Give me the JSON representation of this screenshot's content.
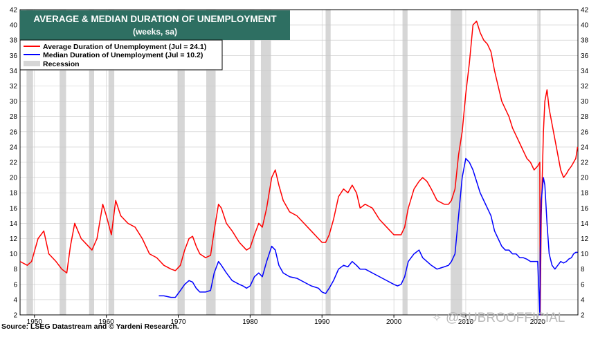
{
  "title": "AVERAGE & MEDIAN DURATION OF UNEMPLOYMENT",
  "subtitle": "(weeks, sa)",
  "source": "Source: LSEG Datastream and © Yardeni Research.",
  "watermark": "@SUBROOFFICIAL",
  "colors": {
    "title_bg": "#2e6f62",
    "average": "#ff0000",
    "median": "#0000ff",
    "recession": "#d6d6d6",
    "grid": "#c8c8c8"
  },
  "chart_data": {
    "type": "line",
    "title": "AVERAGE & MEDIAN DURATION OF UNEMPLOYMENT",
    "subtitle": "(weeks, sa)",
    "xlim": [
      1948,
      2025.6
    ],
    "ylim": [
      2,
      42
    ],
    "yticks": [
      2,
      4,
      6,
      8,
      10,
      12,
      14,
      16,
      18,
      20,
      22,
      24,
      26,
      28,
      30,
      32,
      34,
      36,
      38,
      40,
      42
    ],
    "xticks": [
      1950,
      1960,
      1970,
      1980,
      1990,
      2000,
      2010,
      2020
    ],
    "xtick_labels": [
      "1950",
      "1960",
      "1970",
      "1980",
      "1990",
      "2000",
      "2010",
      "2020"
    ],
    "grid": true,
    "legend_position": "top-left",
    "legend": [
      "Average Duration of Unemployment (Jul = 24.1)",
      "Median Duration of Unemployment (Jul = 10.2)",
      "Recession"
    ],
    "recessions": [
      [
        1948.9,
        1949.8
      ],
      [
        1953.5,
        1954.4
      ],
      [
        1957.6,
        1958.3
      ],
      [
        1960.3,
        1961.1
      ],
      [
        1969.9,
        1970.9
      ],
      [
        1973.9,
        1975.2
      ],
      [
        1980.0,
        1980.6
      ],
      [
        1981.5,
        1982.9
      ],
      [
        1990.5,
        1991.2
      ],
      [
        2001.2,
        2001.9
      ],
      [
        2007.9,
        2009.5
      ],
      [
        2020.1,
        2020.4
      ]
    ],
    "series": [
      {
        "name": "Average Duration of Unemployment (Jul = 24.1)",
        "x": [
          1948.0,
          1949.0,
          1949.6,
          1950.5,
          1951.3,
          1952.0,
          1953.0,
          1953.8,
          1954.5,
          1955.0,
          1955.6,
          1956.5,
          1957.5,
          1958.0,
          1958.7,
          1959.5,
          1960.0,
          1960.7,
          1961.3,
          1962.0,
          1963.0,
          1964.0,
          1965.0,
          1966.0,
          1967.0,
          1968.0,
          1969.0,
          1969.6,
          1970.3,
          1970.9,
          1971.5,
          1972.0,
          1972.5,
          1973.0,
          1973.8,
          1974.5,
          1975.0,
          1975.6,
          1976.0,
          1976.7,
          1977.5,
          1978.5,
          1979.0,
          1979.5,
          1980.0,
          1980.6,
          1981.2,
          1981.7,
          1982.3,
          1983.0,
          1983.5,
          1984.0,
          1984.6,
          1985.5,
          1986.5,
          1987.5,
          1988.5,
          1989.5,
          1990.0,
          1990.5,
          1991.0,
          1991.6,
          1992.3,
          1993.0,
          1993.6,
          1994.2,
          1994.8,
          1995.3,
          1996.0,
          1997.0,
          1998.0,
          1999.0,
          2000.0,
          2000.5,
          2001.0,
          2001.5,
          2002.0,
          2002.8,
          2003.5,
          2004.0,
          2004.6,
          2005.2,
          2006.0,
          2007.0,
          2007.6,
          2008.0,
          2008.5,
          2009.0,
          2009.5,
          2010.0,
          2010.5,
          2011.0,
          2011.5,
          2012.0,
          2012.5,
          2013.0,
          2013.5,
          2014.0,
          2014.5,
          2015.0,
          2015.5,
          2016.0,
          2016.5,
          2017.0,
          2017.5,
          2018.0,
          2018.5,
          2019.0,
          2019.5,
          2020.0,
          2020.3,
          2020.35,
          2020.5,
          2020.8,
          2021.0,
          2021.3,
          2021.6,
          2022.0,
          2022.4,
          2022.8,
          2023.2,
          2023.6,
          2024.0,
          2024.3,
          2024.7,
          2025.0,
          2025.3,
          2025.55
        ],
        "values": [
          9.0,
          8.5,
          9.0,
          12.0,
          13.0,
          10.0,
          9.0,
          8.0,
          7.5,
          11.0,
          14.0,
          12.0,
          11.0,
          10.5,
          12.0,
          16.5,
          15.0,
          12.5,
          17.0,
          15.0,
          14.0,
          13.5,
          12.0,
          10.0,
          9.5,
          8.5,
          8.0,
          7.8,
          8.5,
          10.5,
          12.0,
          12.3,
          11.0,
          10.0,
          9.5,
          9.8,
          13.0,
          16.5,
          16.0,
          14.0,
          13.0,
          11.5,
          11.0,
          10.5,
          10.8,
          12.5,
          14.0,
          13.5,
          16.0,
          20.0,
          21.0,
          19.0,
          17.0,
          15.5,
          15.0,
          14.0,
          13.0,
          12.0,
          11.5,
          11.5,
          12.5,
          14.5,
          17.5,
          18.5,
          18.0,
          19.0,
          18.0,
          16.0,
          16.5,
          16.0,
          14.5,
          13.5,
          12.5,
          12.5,
          12.5,
          13.5,
          16.0,
          18.5,
          19.5,
          20.0,
          19.5,
          18.5,
          17.0,
          16.5,
          16.5,
          17.0,
          18.5,
          23.0,
          26.0,
          31.0,
          35.0,
          40.0,
          40.5,
          39.0,
          38.0,
          37.5,
          36.5,
          34.0,
          32.0,
          30.0,
          29.0,
          28.0,
          26.5,
          25.5,
          24.5,
          23.5,
          22.5,
          22.0,
          21.0,
          21.5,
          22.0,
          2.0,
          15.0,
          26.0,
          30.0,
          31.5,
          29.0,
          27.0,
          25.0,
          23.0,
          21.0,
          20.0,
          20.5,
          21.0,
          21.5,
          22.0,
          22.5,
          24.0
        ]
      },
      {
        "name": "Median Duration of Unemployment (Jul = 10.2)",
        "x": [
          1967.3,
          1968.0,
          1969.0,
          1969.6,
          1970.3,
          1970.9,
          1971.5,
          1972.0,
          1972.5,
          1973.0,
          1973.8,
          1974.5,
          1975.0,
          1975.6,
          1976.0,
          1976.7,
          1977.5,
          1978.5,
          1979.0,
          1979.5,
          1980.0,
          1980.6,
          1981.2,
          1981.7,
          1982.3,
          1983.0,
          1983.5,
          1984.0,
          1984.6,
          1985.5,
          1986.5,
          1987.5,
          1988.5,
          1989.5,
          1990.0,
          1990.5,
          1991.0,
          1991.6,
          1992.3,
          1993.0,
          1993.6,
          1994.2,
          1994.8,
          1995.3,
          1996.0,
          1997.0,
          1998.0,
          1999.0,
          2000.0,
          2000.5,
          2001.0,
          2001.5,
          2002.0,
          2002.8,
          2003.5,
          2004.0,
          2004.6,
          2005.2,
          2006.0,
          2007.0,
          2007.6,
          2008.0,
          2008.5,
          2009.0,
          2009.5,
          2010.0,
          2010.5,
          2011.0,
          2011.5,
          2012.0,
          2012.5,
          2013.0,
          2013.5,
          2014.0,
          2014.5,
          2015.0,
          2015.5,
          2016.0,
          2016.5,
          2017.0,
          2017.5,
          2018.0,
          2018.5,
          2019.0,
          2019.5,
          2020.0,
          2020.3,
          2020.35,
          2020.5,
          2020.8,
          2021.0,
          2021.3,
          2021.6,
          2022.0,
          2022.4,
          2022.8,
          2023.2,
          2023.6,
          2024.0,
          2024.3,
          2024.7,
          2025.0,
          2025.3,
          2025.55
        ],
        "values": [
          4.5,
          4.5,
          4.3,
          4.3,
          5.2,
          6.0,
          6.5,
          6.3,
          5.5,
          5.0,
          5.0,
          5.2,
          7.5,
          9.0,
          8.5,
          7.5,
          6.5,
          6.0,
          5.8,
          5.5,
          5.8,
          7.0,
          7.5,
          7.0,
          9.0,
          11.0,
          10.5,
          8.5,
          7.5,
          7.0,
          6.8,
          6.3,
          5.8,
          5.5,
          5.0,
          4.8,
          5.5,
          6.5,
          8.0,
          8.5,
          8.3,
          9.0,
          8.5,
          8.0,
          8.0,
          7.5,
          7.0,
          6.5,
          6.0,
          5.8,
          6.0,
          7.0,
          9.0,
          10.0,
          10.5,
          9.5,
          9.0,
          8.5,
          8.0,
          8.3,
          8.5,
          9.0,
          10.0,
          15.0,
          20.0,
          22.5,
          22.0,
          21.0,
          19.5,
          18.0,
          17.0,
          16.0,
          15.0,
          13.0,
          12.0,
          11.0,
          10.5,
          10.5,
          10.0,
          10.0,
          9.5,
          9.5,
          9.3,
          9.0,
          9.0,
          9.0,
          2.0,
          10.0,
          17.0,
          20.0,
          19.0,
          14.0,
          10.0,
          8.5,
          8.0,
          8.5,
          9.0,
          8.8,
          9.0,
          9.3,
          9.5,
          10.0,
          10.2,
          10.2
        ]
      }
    ]
  }
}
